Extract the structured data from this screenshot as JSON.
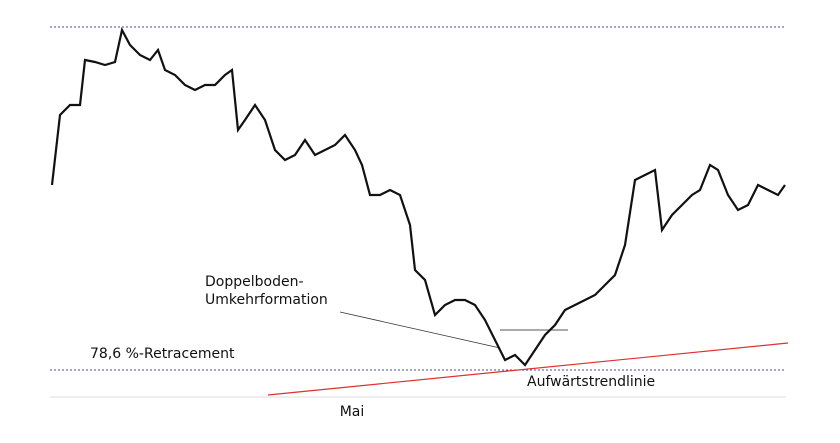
{
  "chart_data": {
    "type": "line",
    "x": [
      52,
      60,
      70,
      80,
      85,
      95,
      105,
      115,
      122,
      130,
      140,
      150,
      158,
      165,
      175,
      185,
      195,
      205,
      215,
      225,
      232,
      238,
      245,
      255,
      265,
      275,
      285,
      295,
      305,
      315,
      325,
      335,
      345,
      355,
      362,
      370,
      380,
      390,
      400,
      410,
      415,
      425,
      435,
      445,
      455,
      465,
      475,
      485,
      495,
      505,
      515,
      525,
      535,
      545,
      555,
      565,
      575,
      585,
      595,
      605,
      615,
      625,
      635,
      645,
      655,
      662,
      672,
      682,
      692,
      700,
      710,
      718,
      728,
      738,
      748,
      758,
      768,
      778,
      785
    ],
    "values": [
      185,
      255,
      265,
      265,
      310,
      308,
      305,
      308,
      340,
      325,
      315,
      310,
      320,
      300,
      295,
      285,
      280,
      285,
      285,
      295,
      300,
      240,
      250,
      265,
      250,
      220,
      210,
      215,
      230,
      215,
      220,
      225,
      235,
      220,
      205,
      175,
      175,
      180,
      175,
      145,
      100,
      90,
      55,
      65,
      70,
      70,
      65,
      50,
      30,
      10,
      15,
      5,
      20,
      35,
      45,
      60,
      65,
      70,
      75,
      85,
      95,
      125,
      190,
      195,
      200,
      140,
      155,
      165,
      175,
      180,
      205,
      200,
      175,
      160,
      165,
      185,
      180,
      175,
      185
    ],
    "color": "#111111",
    "xlim": [
      0,
      840
    ],
    "ylim": [
      -30,
      350
    ],
    "xticks": [
      {
        "value": 352,
        "label": "Mai"
      }
    ],
    "levels": [
      {
        "value": 343
      },
      {
        "value": 0,
        "label": "78,6 %-Retracement"
      }
    ],
    "level_color": "#4a4a9a",
    "trendline": {
      "label": "Aufwärtstrendlinie",
      "x": [
        268,
        788
      ],
      "values": [
        -25,
        27
      ],
      "color": "#e03030"
    },
    "neckline": {
      "x": [
        500,
        568
      ],
      "value": 40
    },
    "annotation": [
      "Doppelboden-",
      "Umkehrformation"
    ]
  }
}
